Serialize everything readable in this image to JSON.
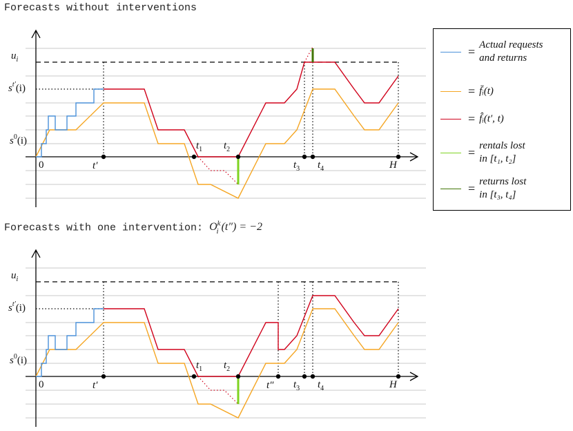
{
  "panel1": {
    "title_text": "Forecasts without interventions"
  },
  "panel2": {
    "title_text": "Forecasts with one intervention: ",
    "title_math": "O",
    "title_sup": "k",
    "title_sub": "i",
    "title_arg": "(t″) = −2"
  },
  "labels": {
    "u_i": "u",
    "u_i_sub": "i",
    "s_tp": "s",
    "s_tp_sup": "t′",
    "s_tp_arg": "(i)",
    "s_0": "s",
    "s_0_sup": "0",
    "s_0_arg": "(i)",
    "zero": "0",
    "t_prime": "t′",
    "t_dprime": "t″",
    "t1": "t",
    "t1_sub": "1",
    "t2": "t",
    "t2_sub": "2",
    "t3": "t",
    "t3_sub": "3",
    "t4": "t",
    "t4_sub": "4",
    "H": "H"
  },
  "legend": {
    "items": [
      {
        "color": "#4a90d9",
        "eq": "=",
        "lines": [
          "Actual requests",
          "and returns"
        ]
      },
      {
        "color": "#f5a623",
        "eq": "=",
        "lines": [
          "f̄ᵢ(t)"
        ]
      },
      {
        "color": "#d0021b",
        "eq": "=",
        "lines": [
          "f̂ᵢ(t′, t)"
        ]
      },
      {
        "color": "#7ed321",
        "eq": "=",
        "lines": [
          "rentals lost",
          "in [t₁, t₂]"
        ]
      },
      {
        "color": "#417505",
        "eq": "=",
        "lines": [
          "returns lost",
          "in [t₃, t₄]"
        ]
      }
    ]
  },
  "colors": {
    "blue": "#4a90d9",
    "orange": "#f5a623",
    "red": "#d0021b",
    "light_green": "#7ed321",
    "dark_green": "#417505",
    "grid": "#c8c8c8"
  }
}
